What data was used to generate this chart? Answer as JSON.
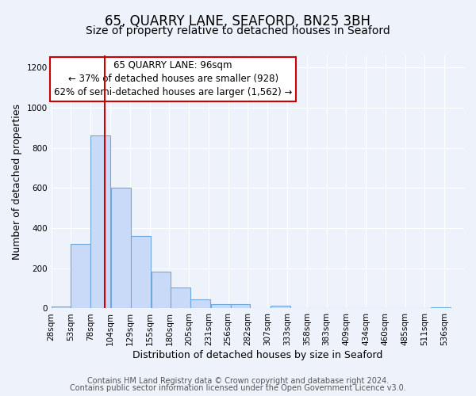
{
  "title": "65, QUARRY LANE, SEAFORD, BN25 3BH",
  "subtitle": "Size of property relative to detached houses in Seaford",
  "xlabel": "Distribution of detached houses by size in Seaford",
  "ylabel": "Number of detached properties",
  "bar_left_edges": [
    28,
    53,
    78,
    104,
    129,
    155,
    180,
    205,
    231,
    256,
    282,
    307,
    333,
    358,
    383,
    409,
    434,
    460,
    485,
    511
  ],
  "bar_heights": [
    10,
    320,
    860,
    600,
    360,
    185,
    105,
    45,
    20,
    20,
    0,
    15,
    0,
    0,
    0,
    0,
    0,
    0,
    0,
    5
  ],
  "bin_width": 25,
  "bar_color": "#c9daf8",
  "bar_edge_color": "#6fa8dc",
  "tick_labels": [
    "28sqm",
    "53sqm",
    "78sqm",
    "104sqm",
    "129sqm",
    "155sqm",
    "180sqm",
    "205sqm",
    "231sqm",
    "256sqm",
    "282sqm",
    "307sqm",
    "333sqm",
    "358sqm",
    "383sqm",
    "409sqm",
    "434sqm",
    "460sqm",
    "485sqm",
    "511sqm",
    "536sqm"
  ],
  "vline_x": 96,
  "vline_color": "#cc0000",
  "ylim": [
    0,
    1260
  ],
  "yticks": [
    0,
    200,
    400,
    600,
    800,
    1000,
    1200
  ],
  "annotation_line1": "65 QUARRY LANE: 96sqm",
  "annotation_line2": "← 37% of detached houses are smaller (928)",
  "annotation_line3": "62% of semi-detached houses are larger (1,562) →",
  "annotation_box_color": "#ffffff",
  "annotation_box_edgecolor": "#cc0000",
  "footer1": "Contains HM Land Registry data © Crown copyright and database right 2024.",
  "footer2": "Contains public sector information licensed under the Open Government Licence v3.0.",
  "bg_color": "#eef2fb",
  "plot_bg_color": "#eef2fb",
  "grid_color": "#ffffff",
  "title_fontsize": 12,
  "subtitle_fontsize": 10,
  "axis_label_fontsize": 9,
  "tick_fontsize": 7.5,
  "annotation_fontsize": 8.5,
  "footer_fontsize": 7
}
